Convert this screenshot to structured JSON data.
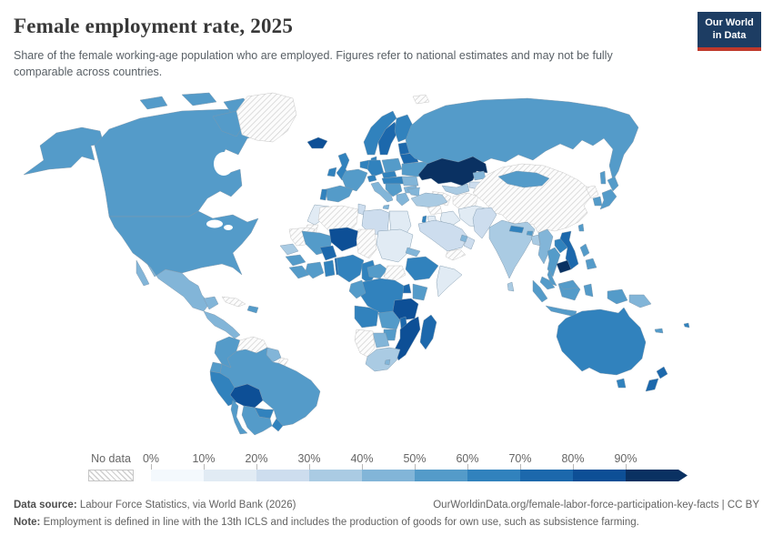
{
  "header": {
    "title": "Female employment rate, 2025",
    "subtitle": "Share of the female working-age population who are employed. Figures refer to national estimates and may not be fully comparable across countries.",
    "logo": {
      "line1": "Our World",
      "line2": "in Data",
      "bg_color": "#1d3d63",
      "accent_color": "#c0392b"
    }
  },
  "legend": {
    "no_data_label": "No data",
    "tick_labels": [
      "0%",
      "10%",
      "20%",
      "30%",
      "40%",
      "50%",
      "60%",
      "70%",
      "80%",
      "90%"
    ]
  },
  "footer": {
    "data_source_label": "Data source:",
    "data_source_text": " Labour Force Statistics, via World Bank (2026)",
    "link_text": "OurWorldinData.org/female-labor-force-participation-key-facts | CC BY",
    "note_label": "Note:",
    "note_text": " Employment is defined in line with the 13th ICLS and includes the production of goods for own use, such as subsistence farming."
  },
  "chart_data": {
    "type": "choropleth_map",
    "title": "Female employment rate, 2025",
    "unit": "%",
    "legend_position": "bottom",
    "bin_labels": [
      "0-10%",
      "10-20%",
      "20-30%",
      "30-40%",
      "40-50%",
      "50-60%",
      "60-70%",
      "70-80%",
      "80-90%",
      "90%+"
    ],
    "palette": [
      "#f4f9fd",
      "#e1ebf4",
      "#cdddee",
      "#aacbe3",
      "#82b5d8",
      "#549bc9",
      "#3182bd",
      "#1c68ac",
      "#0d4f96",
      "#0a3162"
    ],
    "no_data_fill": "hatched",
    "regions": {
      "canada": 5,
      "usa": 5,
      "greenland": null,
      "iceland": 8,
      "mexico": 4,
      "central-america": 4,
      "cuba": null,
      "hispaniola": 5,
      "colombia": 5,
      "venezuela": null,
      "guyanas": 4,
      "french-guiana": null,
      "ecuador": 5,
      "peru": 6,
      "bolivia": 8,
      "brazil": 5,
      "paraguay": 6,
      "uruguay": 6,
      "argentina": 5,
      "chile": 5,
      "uk": 6,
      "ireland": 6,
      "norway": 6,
      "sweden": 7,
      "finland": 6,
      "baltics": 7,
      "denmark": 6,
      "germany": 6,
      "benelux": 6,
      "poland": 5,
      "france": 5,
      "spain": 5,
      "portugal": 6,
      "switzerland": 6,
      "czechia": 6,
      "austria-hungary": 6,
      "italy": 4,
      "balkans": 5,
      "romania": 4,
      "bulgaria": 4,
      "greece": 4,
      "ukraine": 5,
      "belarus": 7,
      "russia": 5,
      "svalbard": null,
      "kazakhstan": 9,
      "caucasus": 4,
      "uzbekistan": 3,
      "turkmenistan": null,
      "kyrgyzstan": 4,
      "tajikistan": 2,
      "afghanistan": null,
      "turkey": 3,
      "syria": null,
      "iraq": 1,
      "iran": 1,
      "israel": 6,
      "jordan": 1,
      "saudi-arabia": 2,
      "yemen": null,
      "oman": 2,
      "uae": 4,
      "morocco": 1,
      "western-sahara": null,
      "mauritania": null,
      "algeria": null,
      "tunisia": 2,
      "libya": 2,
      "egypt": 1,
      "mali": 5,
      "niger": 8,
      "chad": null,
      "sudan": 1,
      "south-sudan": null,
      "senegal": 3,
      "guinea": 5,
      "sierra-leone": 5,
      "ivory-coast": 5,
      "burkina-faso": 7,
      "ghana": 6,
      "togo-benin": 7,
      "nigeria": 6,
      "cameroon": 6,
      "car": 5,
      "eritrea": 4,
      "ethiopia": 6,
      "somalia": 1,
      "uganda": 7,
      "kenya": 5,
      "rwanda-burundi": 8,
      "drc": 6,
      "congo-gabon": 5,
      "tanzania": 8,
      "angola": 6,
      "zambia": 5,
      "malawi": 7,
      "mozambique": 8,
      "madagascar": 7,
      "zimbabwe": 5,
      "botswana": 4,
      "namibia": null,
      "south-africa": 3,
      "lesotho": 4,
      "pakistan": 2,
      "india": 3,
      "nepal": 6,
      "bhutan": 5,
      "bangladesh": 3,
      "sri-lanka": 3,
      "myanmar": 4,
      "thailand": 5,
      "laos": 6,
      "vietnam": 7,
      "cambodia": 9,
      "malaysia": 5,
      "china": null,
      "mongolia": 5,
      "north-korea": null,
      "south-korea": 5,
      "japan": 5,
      "taiwan": 5,
      "philippines": 5,
      "indonesia": 5,
      "papua-new-guinea": 4,
      "australia": 6,
      "tasmania": 6,
      "new-zealand": 7,
      "new-caledonia": 5,
      "fiji": 6
    }
  }
}
